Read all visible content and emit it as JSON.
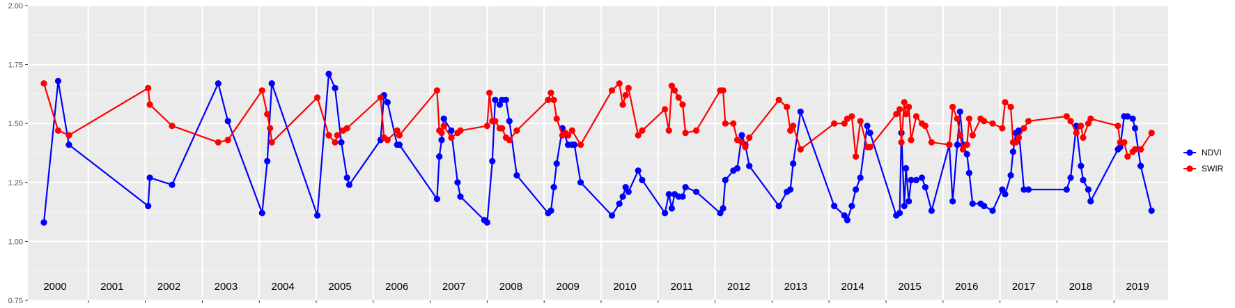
{
  "chart_data": {
    "type": "line",
    "ylim": [
      0.75,
      2.0
    ],
    "y_ticks": [
      "0.75",
      "1.00",
      "1.25",
      "1.50",
      "1.75",
      "2.00"
    ],
    "y_tick_values": [
      0.75,
      1.0,
      1.25,
      1.5,
      1.75,
      2.0
    ],
    "xlim": [
      2000,
      2020
    ],
    "x_year_labels": [
      "2000",
      "2001",
      "2002",
      "2003",
      "2004",
      "2005",
      "2006",
      "2007",
      "2008",
      "2009",
      "2010",
      "2011",
      "2012",
      "2013",
      "2014",
      "2015",
      "2016",
      "2017",
      "2018",
      "2019"
    ],
    "grid": true,
    "panel_background": "#ebebeb",
    "legend_position": "right",
    "series": [
      {
        "name": "NDVI",
        "color": "#0000ff",
        "points": [
          [
            2000.0,
            1.08
          ],
          [
            2000.25,
            1.68
          ],
          [
            2000.44,
            1.41
          ],
          [
            2001.83,
            1.15
          ],
          [
            2001.86,
            1.27
          ],
          [
            2002.25,
            1.24
          ],
          [
            2003.06,
            1.67
          ],
          [
            2003.23,
            1.51
          ],
          [
            2003.83,
            1.12
          ],
          [
            2003.92,
            1.34
          ],
          [
            2004.0,
            1.67
          ],
          [
            2004.8,
            1.11
          ],
          [
            2005.0,
            1.71
          ],
          [
            2005.11,
            1.65
          ],
          [
            2005.22,
            1.42
          ],
          [
            2005.32,
            1.27
          ],
          [
            2005.36,
            1.24
          ],
          [
            2005.91,
            1.43
          ],
          [
            2005.97,
            1.62
          ],
          [
            2006.03,
            1.59
          ],
          [
            2006.2,
            1.41
          ],
          [
            2006.24,
            1.41
          ],
          [
            2006.9,
            1.18
          ],
          [
            2006.94,
            1.36
          ],
          [
            2006.98,
            1.43
          ],
          [
            2007.02,
            1.52
          ],
          [
            2007.15,
            1.47
          ],
          [
            2007.26,
            1.25
          ],
          [
            2007.31,
            1.19
          ],
          [
            2007.73,
            1.09
          ],
          [
            2007.78,
            1.08
          ],
          [
            2007.87,
            1.34
          ],
          [
            2007.92,
            1.6
          ],
          [
            2008.0,
            1.58
          ],
          [
            2008.04,
            1.6
          ],
          [
            2008.11,
            1.6
          ],
          [
            2008.17,
            1.51
          ],
          [
            2008.3,
            1.28
          ],
          [
            2008.85,
            1.12
          ],
          [
            2008.9,
            1.13
          ],
          [
            2008.95,
            1.23
          ],
          [
            2009.0,
            1.33
          ],
          [
            2009.1,
            1.48
          ],
          [
            2009.2,
            1.41
          ],
          [
            2009.27,
            1.41
          ],
          [
            2009.31,
            1.41
          ],
          [
            2009.42,
            1.25
          ],
          [
            2009.97,
            1.11
          ],
          [
            2010.1,
            1.16
          ],
          [
            2010.16,
            1.19
          ],
          [
            2010.21,
            1.23
          ],
          [
            2010.26,
            1.21
          ],
          [
            2010.43,
            1.3
          ],
          [
            2010.5,
            1.26
          ],
          [
            2010.9,
            1.12
          ],
          [
            2010.97,
            1.2
          ],
          [
            2011.02,
            1.14
          ],
          [
            2011.07,
            1.2
          ],
          [
            2011.14,
            1.19
          ],
          [
            2011.21,
            1.19
          ],
          [
            2011.26,
            1.23
          ],
          [
            2011.45,
            1.21
          ],
          [
            2011.87,
            1.12
          ],
          [
            2011.92,
            1.14
          ],
          [
            2011.96,
            1.26
          ],
          [
            2012.1,
            1.3
          ],
          [
            2012.17,
            1.31
          ],
          [
            2012.25,
            1.45
          ],
          [
            2012.31,
            1.41
          ],
          [
            2012.38,
            1.32
          ],
          [
            2012.9,
            1.15
          ],
          [
            2013.04,
            1.21
          ],
          [
            2013.1,
            1.22
          ],
          [
            2013.15,
            1.33
          ],
          [
            2013.28,
            1.55
          ],
          [
            2013.87,
            1.15
          ],
          [
            2014.05,
            1.11
          ],
          [
            2014.1,
            1.09
          ],
          [
            2014.18,
            1.15
          ],
          [
            2014.25,
            1.22
          ],
          [
            2014.33,
            1.27
          ],
          [
            2014.45,
            1.49
          ],
          [
            2014.5,
            1.46
          ],
          [
            2014.96,
            1.11
          ],
          [
            2015.02,
            1.12
          ],
          [
            2015.05,
            1.46
          ],
          [
            2015.1,
            1.15
          ],
          [
            2015.13,
            1.31
          ],
          [
            2015.18,
            1.17
          ],
          [
            2015.22,
            1.26
          ],
          [
            2015.31,
            1.26
          ],
          [
            2015.41,
            1.27
          ],
          [
            2015.47,
            1.23
          ],
          [
            2015.58,
            1.13
          ],
          [
            2015.89,
            1.41
          ],
          [
            2015.95,
            1.17
          ],
          [
            2016.03,
            1.41
          ],
          [
            2016.08,
            1.55
          ],
          [
            2016.13,
            1.41
          ],
          [
            2016.2,
            1.37
          ],
          [
            2016.24,
            1.29
          ],
          [
            2016.3,
            1.16
          ],
          [
            2016.44,
            1.16
          ],
          [
            2016.5,
            1.15
          ],
          [
            2016.65,
            1.13
          ],
          [
            2016.82,
            1.22
          ],
          [
            2016.87,
            1.2
          ],
          [
            2016.97,
            1.28
          ],
          [
            2017.01,
            1.38
          ],
          [
            2017.06,
            1.46
          ],
          [
            2017.11,
            1.47
          ],
          [
            2017.2,
            1.22
          ],
          [
            2017.28,
            1.22
          ],
          [
            2017.95,
            1.22
          ],
          [
            2018.02,
            1.27
          ],
          [
            2018.12,
            1.49
          ],
          [
            2018.2,
            1.32
          ],
          [
            2018.24,
            1.26
          ],
          [
            2018.33,
            1.22
          ],
          [
            2018.37,
            1.17
          ],
          [
            2018.85,
            1.39
          ],
          [
            2018.89,
            1.4
          ],
          [
            2018.96,
            1.53
          ],
          [
            2019.02,
            1.53
          ],
          [
            2019.11,
            1.52
          ],
          [
            2019.15,
            1.48
          ],
          [
            2019.25,
            1.32
          ],
          [
            2019.44,
            1.13
          ]
        ]
      },
      {
        "name": "SWIR",
        "color": "#ff0000",
        "points": [
          [
            2000.0,
            1.67
          ],
          [
            2000.25,
            1.47
          ],
          [
            2000.44,
            1.45
          ],
          [
            2001.83,
            1.65
          ],
          [
            2001.86,
            1.58
          ],
          [
            2002.25,
            1.49
          ],
          [
            2003.06,
            1.42
          ],
          [
            2003.23,
            1.43
          ],
          [
            2003.83,
            1.64
          ],
          [
            2003.92,
            1.54
          ],
          [
            2003.97,
            1.48
          ],
          [
            2004.0,
            1.42
          ],
          [
            2004.8,
            1.61
          ],
          [
            2005.0,
            1.45
          ],
          [
            2005.11,
            1.42
          ],
          [
            2005.15,
            1.45
          ],
          [
            2005.25,
            1.47
          ],
          [
            2005.32,
            1.48
          ],
          [
            2005.91,
            1.61
          ],
          [
            2005.97,
            1.44
          ],
          [
            2006.03,
            1.43
          ],
          [
            2006.2,
            1.47
          ],
          [
            2006.24,
            1.45
          ],
          [
            2006.9,
            1.64
          ],
          [
            2006.94,
            1.47
          ],
          [
            2006.98,
            1.46
          ],
          [
            2007.02,
            1.49
          ],
          [
            2007.15,
            1.44
          ],
          [
            2007.26,
            1.46
          ],
          [
            2007.31,
            1.47
          ],
          [
            2007.78,
            1.49
          ],
          [
            2007.82,
            1.63
          ],
          [
            2007.87,
            1.51
          ],
          [
            2007.92,
            1.51
          ],
          [
            2008.0,
            1.48
          ],
          [
            2008.04,
            1.48
          ],
          [
            2008.11,
            1.44
          ],
          [
            2008.17,
            1.43
          ],
          [
            2008.3,
            1.47
          ],
          [
            2008.85,
            1.6
          ],
          [
            2008.9,
            1.63
          ],
          [
            2008.95,
            1.6
          ],
          [
            2009.0,
            1.52
          ],
          [
            2009.1,
            1.45
          ],
          [
            2009.15,
            1.46
          ],
          [
            2009.2,
            1.45
          ],
          [
            2009.27,
            1.47
          ],
          [
            2009.42,
            1.41
          ],
          [
            2009.97,
            1.64
          ],
          [
            2010.1,
            1.67
          ],
          [
            2010.16,
            1.58
          ],
          [
            2010.21,
            1.62
          ],
          [
            2010.26,
            1.65
          ],
          [
            2010.43,
            1.45
          ],
          [
            2010.5,
            1.47
          ],
          [
            2010.9,
            1.56
          ],
          [
            2010.97,
            1.47
          ],
          [
            2011.02,
            1.66
          ],
          [
            2011.07,
            1.64
          ],
          [
            2011.14,
            1.61
          ],
          [
            2011.21,
            1.58
          ],
          [
            2011.26,
            1.46
          ],
          [
            2011.45,
            1.47
          ],
          [
            2011.87,
            1.64
          ],
          [
            2011.92,
            1.64
          ],
          [
            2011.96,
            1.5
          ],
          [
            2012.1,
            1.5
          ],
          [
            2012.17,
            1.43
          ],
          [
            2012.25,
            1.42
          ],
          [
            2012.31,
            1.4
          ],
          [
            2012.38,
            1.44
          ],
          [
            2012.9,
            1.6
          ],
          [
            2013.04,
            1.57
          ],
          [
            2013.1,
            1.47
          ],
          [
            2013.15,
            1.49
          ],
          [
            2013.28,
            1.39
          ],
          [
            2013.87,
            1.5
          ],
          [
            2014.05,
            1.5
          ],
          [
            2014.1,
            1.52
          ],
          [
            2014.18,
            1.53
          ],
          [
            2014.25,
            1.36
          ],
          [
            2014.33,
            1.51
          ],
          [
            2014.45,
            1.4
          ],
          [
            2014.5,
            1.4
          ],
          [
            2014.96,
            1.54
          ],
          [
            2015.02,
            1.56
          ],
          [
            2015.05,
            1.42
          ],
          [
            2015.1,
            1.59
          ],
          [
            2015.13,
            1.54
          ],
          [
            2015.18,
            1.57
          ],
          [
            2015.22,
            1.43
          ],
          [
            2015.31,
            1.53
          ],
          [
            2015.41,
            1.5
          ],
          [
            2015.47,
            1.49
          ],
          [
            2015.58,
            1.42
          ],
          [
            2015.89,
            1.41
          ],
          [
            2015.95,
            1.57
          ],
          [
            2016.03,
            1.52
          ],
          [
            2016.08,
            1.45
          ],
          [
            2016.13,
            1.39
          ],
          [
            2016.2,
            1.41
          ],
          [
            2016.24,
            1.52
          ],
          [
            2016.3,
            1.45
          ],
          [
            2016.44,
            1.52
          ],
          [
            2016.5,
            1.51
          ],
          [
            2016.65,
            1.5
          ],
          [
            2016.82,
            1.48
          ],
          [
            2016.87,
            1.59
          ],
          [
            2016.97,
            1.57
          ],
          [
            2017.01,
            1.42
          ],
          [
            2017.06,
            1.42
          ],
          [
            2017.11,
            1.44
          ],
          [
            2017.2,
            1.48
          ],
          [
            2017.28,
            1.51
          ],
          [
            2017.95,
            1.53
          ],
          [
            2018.02,
            1.51
          ],
          [
            2018.12,
            1.46
          ],
          [
            2018.2,
            1.49
          ],
          [
            2018.24,
            1.44
          ],
          [
            2018.33,
            1.5
          ],
          [
            2018.37,
            1.52
          ],
          [
            2018.85,
            1.49
          ],
          [
            2018.89,
            1.42
          ],
          [
            2018.96,
            1.42
          ],
          [
            2019.02,
            1.36
          ],
          [
            2019.11,
            1.38
          ],
          [
            2019.15,
            1.39
          ],
          [
            2019.25,
            1.39
          ],
          [
            2019.44,
            1.46
          ]
        ]
      }
    ]
  }
}
